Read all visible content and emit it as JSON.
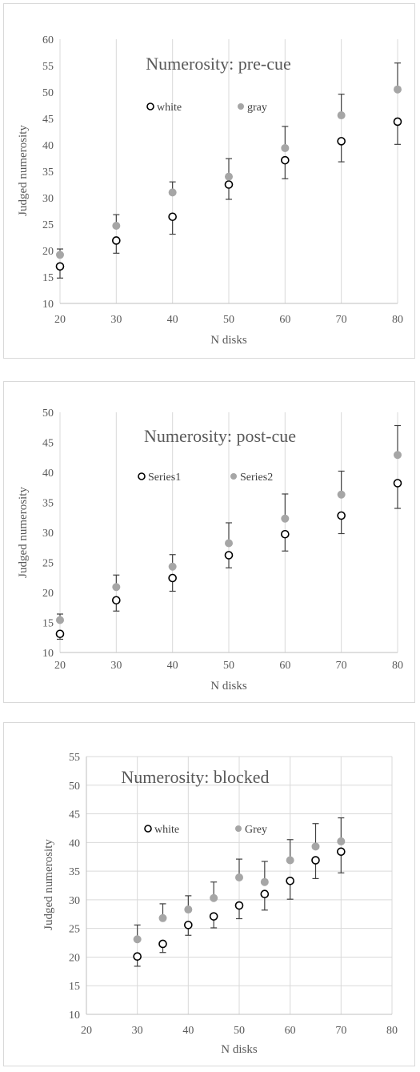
{
  "chart_data": [
    {
      "type": "scatter",
      "title": "Numerosity: pre-cue",
      "xlabel": "N disks",
      "ylabel": "Judged numerosity",
      "xlim": [
        20,
        80
      ],
      "ylim": [
        10,
        60
      ],
      "x_ticks": [
        20,
        30,
        40,
        50,
        60,
        70,
        80
      ],
      "y_ticks": [
        10,
        15,
        20,
        25,
        30,
        35,
        40,
        45,
        50,
        55,
        60
      ],
      "grid": "vertical",
      "legend_position": "top",
      "series": [
        {
          "name": "white",
          "marker": "open-circle",
          "color": "#000000",
          "x": [
            20,
            30,
            40,
            50,
            60,
            70,
            80
          ],
          "y": [
            17.0,
            21.9,
            26.4,
            32.5,
            37.1,
            40.7,
            44.4
          ],
          "error_lower": [
            14.8,
            19.5,
            23.1,
            29.7,
            33.6,
            36.8,
            40.1
          ],
          "error_upper": null
        },
        {
          "name": "gray",
          "marker": "filled-circle",
          "color": "#a6a6a6",
          "x": [
            20,
            30,
            40,
            50,
            60,
            70,
            80
          ],
          "y": [
            19.2,
            24.7,
            31.0,
            34.0,
            39.4,
            45.6,
            50.5
          ],
          "error_lower": null,
          "error_upper": [
            20.3,
            26.8,
            33.0,
            37.4,
            43.5,
            49.6,
            55.5
          ]
        }
      ]
    },
    {
      "type": "scatter",
      "title": "Numerosity: post-cue",
      "xlabel": "N disks",
      "ylabel": "Judged numerosity",
      "xlim": [
        20,
        80
      ],
      "ylim": [
        10,
        50
      ],
      "x_ticks": [
        20,
        30,
        40,
        50,
        60,
        70,
        80
      ],
      "y_ticks": [
        10,
        15,
        20,
        25,
        30,
        35,
        40,
        45,
        50
      ],
      "grid": "vertical",
      "legend_position": "top",
      "series": [
        {
          "name": "Series1",
          "marker": "open-circle",
          "color": "#000000",
          "x": [
            20,
            30,
            40,
            50,
            60,
            70,
            80
          ],
          "y": [
            13.1,
            18.7,
            22.4,
            26.2,
            29.7,
            32.8,
            38.2
          ],
          "error_lower": [
            12.2,
            16.9,
            20.2,
            24.1,
            26.9,
            29.8,
            34.0
          ],
          "error_upper": null
        },
        {
          "name": "Series2",
          "marker": "filled-circle",
          "color": "#a6a6a6",
          "x": [
            20,
            30,
            40,
            50,
            60,
            70,
            80
          ],
          "y": [
            15.4,
            20.9,
            24.3,
            28.2,
            32.3,
            36.3,
            42.9
          ],
          "error_lower": null,
          "error_upper": [
            16.4,
            22.9,
            26.3,
            31.6,
            36.4,
            40.2,
            47.8
          ]
        }
      ]
    },
    {
      "type": "scatter",
      "title": "Numerosity: blocked",
      "xlabel": "N disks",
      "ylabel": "Judged numerosity",
      "xlim": [
        20,
        80
      ],
      "ylim": [
        10,
        55
      ],
      "x_ticks": [
        20,
        30,
        40,
        50,
        60,
        70,
        80
      ],
      "y_ticks": [
        10,
        15,
        20,
        25,
        30,
        35,
        40,
        45,
        50,
        55
      ],
      "grid": "both",
      "legend_position": "top",
      "series": [
        {
          "name": "white",
          "marker": "open-circle",
          "color": "#000000",
          "x": [
            30,
            35,
            40,
            45,
            50,
            55,
            60,
            65,
            70
          ],
          "y": [
            20.1,
            22.3,
            25.6,
            27.1,
            29.0,
            31.0,
            33.3,
            36.9,
            38.4
          ],
          "error_lower": [
            18.4,
            20.8,
            23.8,
            25.1,
            26.7,
            28.2,
            30.1,
            33.7,
            34.7
          ],
          "error_upper": null
        },
        {
          "name": "Grey",
          "marker": "filled-circle",
          "color": "#a6a6a6",
          "x": [
            30,
            35,
            40,
            45,
            50,
            55,
            60,
            65,
            70
          ],
          "y": [
            23.1,
            26.8,
            28.3,
            30.3,
            33.9,
            33.1,
            36.9,
            39.3,
            40.2
          ],
          "error_lower": null,
          "error_upper": [
            25.6,
            29.3,
            30.7,
            33.1,
            37.1,
            36.7,
            40.5,
            43.3,
            44.3
          ]
        }
      ]
    }
  ]
}
